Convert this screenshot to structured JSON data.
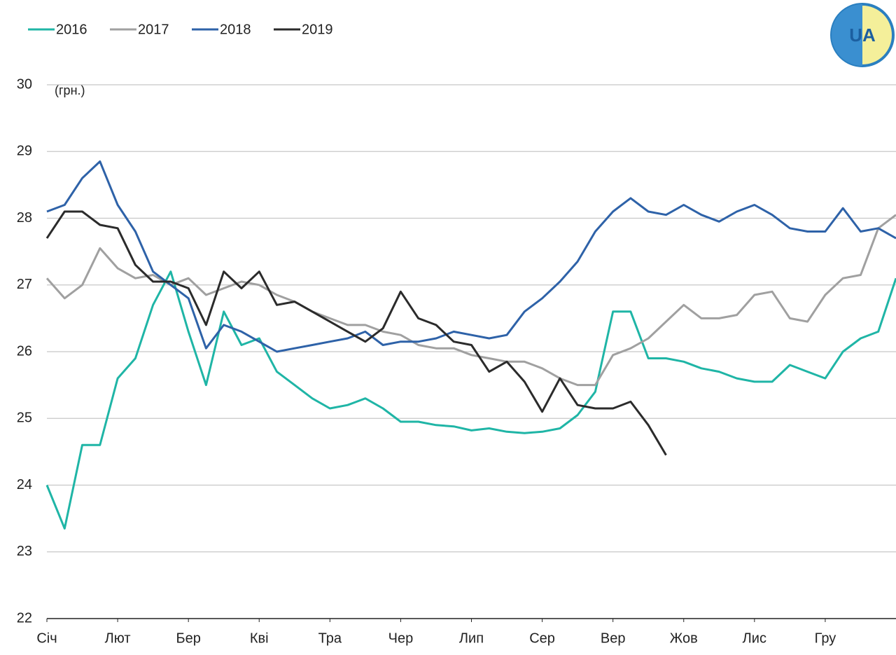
{
  "chart_data": {
    "type": "line",
    "y_label": "(грн.)",
    "logo": "UA",
    "x": [
      0,
      0.25,
      0.5,
      0.75,
      1,
      1.25,
      1.5,
      1.75,
      2,
      2.25,
      2.5,
      2.75,
      3,
      3.25,
      3.5,
      3.75,
      4,
      4.25,
      4.5,
      4.75,
      5,
      5.25,
      5.5,
      5.75,
      6,
      6.25,
      6.5,
      6.75,
      7,
      7.25,
      7.5,
      7.75,
      8,
      8.25,
      8.5,
      8.75,
      9,
      9.25,
      9.5,
      9.75,
      10,
      10.25,
      10.5,
      10.75,
      11,
      11.25,
      11.5,
      11.75,
      12
    ],
    "xlim": [
      0,
      12
    ],
    "xticks": [
      {
        "value": 0,
        "label": "Січ"
      },
      {
        "value": 1,
        "label": "Лют"
      },
      {
        "value": 2,
        "label": "Бер"
      },
      {
        "value": 3,
        "label": "Кві"
      },
      {
        "value": 4,
        "label": "Тра"
      },
      {
        "value": 5,
        "label": "Чер"
      },
      {
        "value": 6,
        "label": "Лип"
      },
      {
        "value": 7,
        "label": "Сер"
      },
      {
        "value": 8,
        "label": "Вер"
      },
      {
        "value": 9,
        "label": "Жов"
      },
      {
        "value": 10,
        "label": "Лис"
      },
      {
        "value": 11,
        "label": "Гру"
      }
    ],
    "ylim": [
      22,
      30
    ],
    "yticks": [
      22,
      23,
      24,
      25,
      26,
      27,
      28,
      29,
      30
    ],
    "grid": true,
    "series": [
      {
        "name": "2016",
        "color": "#1fb5a6",
        "values": [
          24.0,
          23.35,
          24.6,
          24.6,
          25.6,
          25.9,
          26.7,
          27.2,
          26.3,
          25.5,
          26.6,
          26.1,
          26.2,
          25.7,
          25.5,
          25.3,
          25.15,
          25.2,
          25.3,
          25.15,
          24.95,
          24.95,
          24.9,
          24.88,
          24.82,
          24.85,
          24.8,
          24.78,
          24.8,
          24.85,
          25.05,
          25.4,
          26.6,
          26.6,
          25.9,
          25.9,
          25.85,
          25.75,
          25.7,
          25.6,
          25.55,
          25.55,
          25.8,
          25.7,
          25.6,
          26.0,
          26.2,
          26.3,
          27.1
        ]
      },
      {
        "name": "2017",
        "color": "#a0a0a0",
        "values": [
          27.1,
          26.8,
          27.0,
          27.55,
          27.25,
          27.1,
          27.15,
          27.0,
          27.1,
          26.85,
          26.95,
          27.05,
          27.0,
          26.85,
          26.75,
          26.6,
          26.5,
          26.4,
          26.4,
          26.3,
          26.25,
          26.1,
          26.05,
          26.05,
          25.95,
          25.9,
          25.85,
          25.85,
          25.75,
          25.6,
          25.5,
          25.5,
          25.95,
          26.05,
          26.2,
          26.45,
          26.7,
          26.5,
          26.5,
          26.55,
          26.85,
          26.9,
          26.5,
          26.45,
          26.85,
          27.1,
          27.15,
          27.85,
          28.05
        ]
      },
      {
        "name": "2018",
        "color": "#2e62a8",
        "values": [
          28.1,
          28.2,
          28.6,
          28.85,
          28.2,
          27.8,
          27.2,
          27.0,
          26.8,
          26.05,
          26.4,
          26.3,
          26.15,
          26.0,
          26.05,
          26.1,
          26.15,
          26.2,
          26.3,
          26.1,
          26.15,
          26.15,
          26.2,
          26.3,
          26.25,
          26.2,
          26.25,
          26.6,
          26.8,
          27.05,
          27.35,
          27.8,
          28.1,
          28.3,
          28.1,
          28.05,
          28.2,
          28.05,
          27.95,
          28.1,
          28.2,
          28.05,
          27.85,
          27.8,
          27.8,
          28.15,
          27.8,
          27.85,
          27.7
        ]
      },
      {
        "name": "2019",
        "color": "#2b2b2b",
        "values": [
          27.7,
          28.1,
          28.1,
          27.9,
          27.85,
          27.3,
          27.05,
          27.05,
          26.95,
          26.4,
          27.2,
          26.95,
          27.2,
          26.7,
          26.75,
          26.6,
          26.45,
          26.3,
          26.15,
          26.35,
          26.9,
          26.5,
          26.4,
          26.15,
          26.1,
          25.7,
          25.85,
          25.55,
          25.1,
          25.6,
          25.2,
          25.15,
          25.15,
          25.25,
          24.9,
          24.45,
          null,
          null,
          null,
          null,
          null,
          null,
          null,
          null,
          null,
          null,
          null,
          null,
          null
        ]
      }
    ]
  }
}
